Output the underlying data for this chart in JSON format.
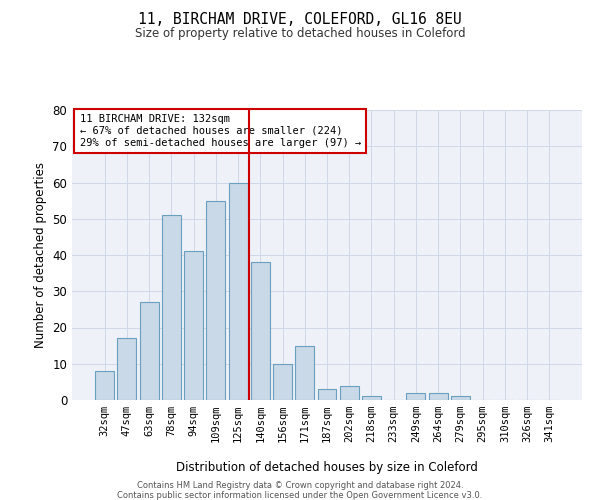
{
  "title1": "11, BIRCHAM DRIVE, COLEFORD, GL16 8EU",
  "title2": "Size of property relative to detached houses in Coleford",
  "xlabel": "Distribution of detached houses by size in Coleford",
  "ylabel": "Number of detached properties",
  "bar_labels": [
    "32sqm",
    "47sqm",
    "63sqm",
    "78sqm",
    "94sqm",
    "109sqm",
    "125sqm",
    "140sqm",
    "156sqm",
    "171sqm",
    "187sqm",
    "202sqm",
    "218sqm",
    "233sqm",
    "249sqm",
    "264sqm",
    "279sqm",
    "295sqm",
    "310sqm",
    "326sqm",
    "341sqm"
  ],
  "bar_values": [
    8,
    17,
    27,
    51,
    41,
    55,
    60,
    38,
    10,
    15,
    3,
    4,
    1,
    0,
    2,
    2,
    1,
    0,
    0,
    0,
    0
  ],
  "bar_color": "#c9d9e8",
  "bar_edge_color": "#6a9fc0",
  "vline_color": "#cc0000",
  "annotation_text": "11 BIRCHAM DRIVE: 132sqm\n← 67% of detached houses are smaller (224)\n29% of semi-detached houses are larger (97) →",
  "annotation_box_color": "#ffffff",
  "annotation_box_edge": "#cc0000",
  "ylim": [
    0,
    80
  ],
  "yticks": [
    0,
    10,
    20,
    30,
    40,
    50,
    60,
    70,
    80
  ],
  "grid_color": "#d0d8e8",
  "bg_color": "#eef2f8",
  "footer1": "Contains HM Land Registry data © Crown copyright and database right 2024.",
  "footer2": "Contains public sector information licensed under the Open Government Licence v3.0."
}
